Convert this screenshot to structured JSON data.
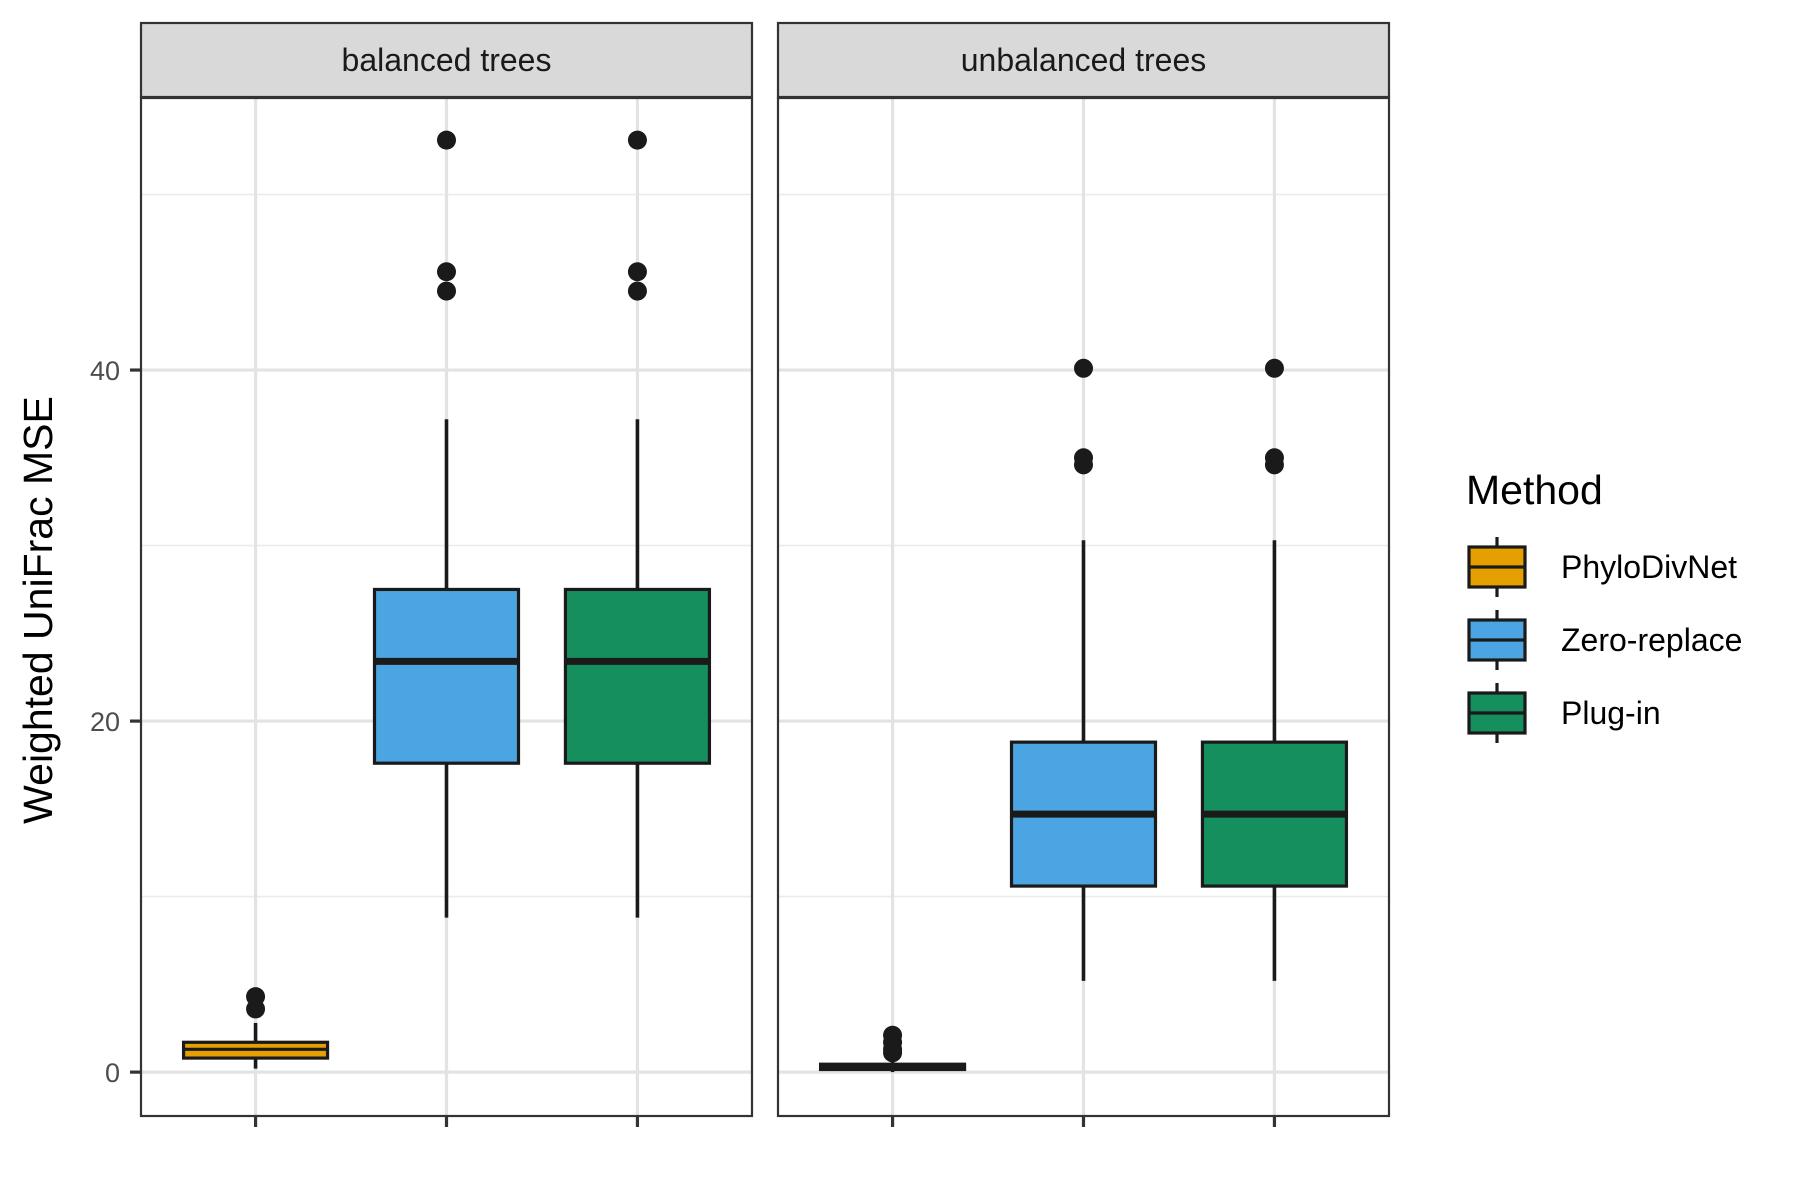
{
  "chart_data": {
    "type": "boxplot",
    "ylabel": "Weighted UniFrac MSE",
    "xlabel": "",
    "ylim": [
      -2.5,
      55.5
    ],
    "y_ticks": [
      0,
      20,
      40
    ],
    "y_minor_gridlines": [
      10,
      30,
      50
    ],
    "grid": true,
    "legend": {
      "title": "Method",
      "position": "right",
      "entries": [
        "PhyloDivNet",
        "Zero-replace",
        "Plug-in"
      ]
    },
    "colors": {
      "PhyloDivNet": "#E69F00",
      "Zero-replace": "#4BA5E3",
      "Plug-in": "#168F5F"
    },
    "panels": [
      {
        "strip": "balanced trees",
        "boxes": [
          {
            "method": "PhyloDivNet",
            "q1": 0.8,
            "median": 1.3,
            "q3": 1.7,
            "whisker_low": 0.2,
            "whisker_high": 2.8,
            "outliers": [
              3.6,
              4.3
            ]
          },
          {
            "method": "Zero-replace",
            "q1": 17.6,
            "median": 23.4,
            "q3": 27.5,
            "whisker_low": 8.8,
            "whisker_high": 37.2,
            "outliers": [
              44.5,
              45.6,
              53.1
            ]
          },
          {
            "method": "Plug-in",
            "q1": 17.6,
            "median": 23.4,
            "q3": 27.5,
            "whisker_low": 8.8,
            "whisker_high": 37.2,
            "outliers": [
              44.5,
              45.6,
              53.1
            ]
          }
        ]
      },
      {
        "strip": "unbalanced trees",
        "boxes": [
          {
            "method": "PhyloDivNet",
            "q1": 0.15,
            "median": 0.3,
            "q3": 0.45,
            "whisker_low": 0.0,
            "whisker_high": 0.9,
            "outliers": [
              1.1,
              1.3,
              1.7,
              2.1
            ]
          },
          {
            "method": "Zero-replace",
            "q1": 10.6,
            "median": 14.7,
            "q3": 18.8,
            "whisker_low": 5.2,
            "whisker_high": 30.3,
            "outliers": [
              34.6,
              35.0,
              40.1
            ]
          },
          {
            "method": "Plug-in",
            "q1": 10.6,
            "median": 14.7,
            "q3": 18.8,
            "whisker_low": 5.2,
            "whisker_high": 30.3,
            "outliers": [
              34.6,
              35.0,
              40.1
            ]
          }
        ]
      }
    ]
  }
}
